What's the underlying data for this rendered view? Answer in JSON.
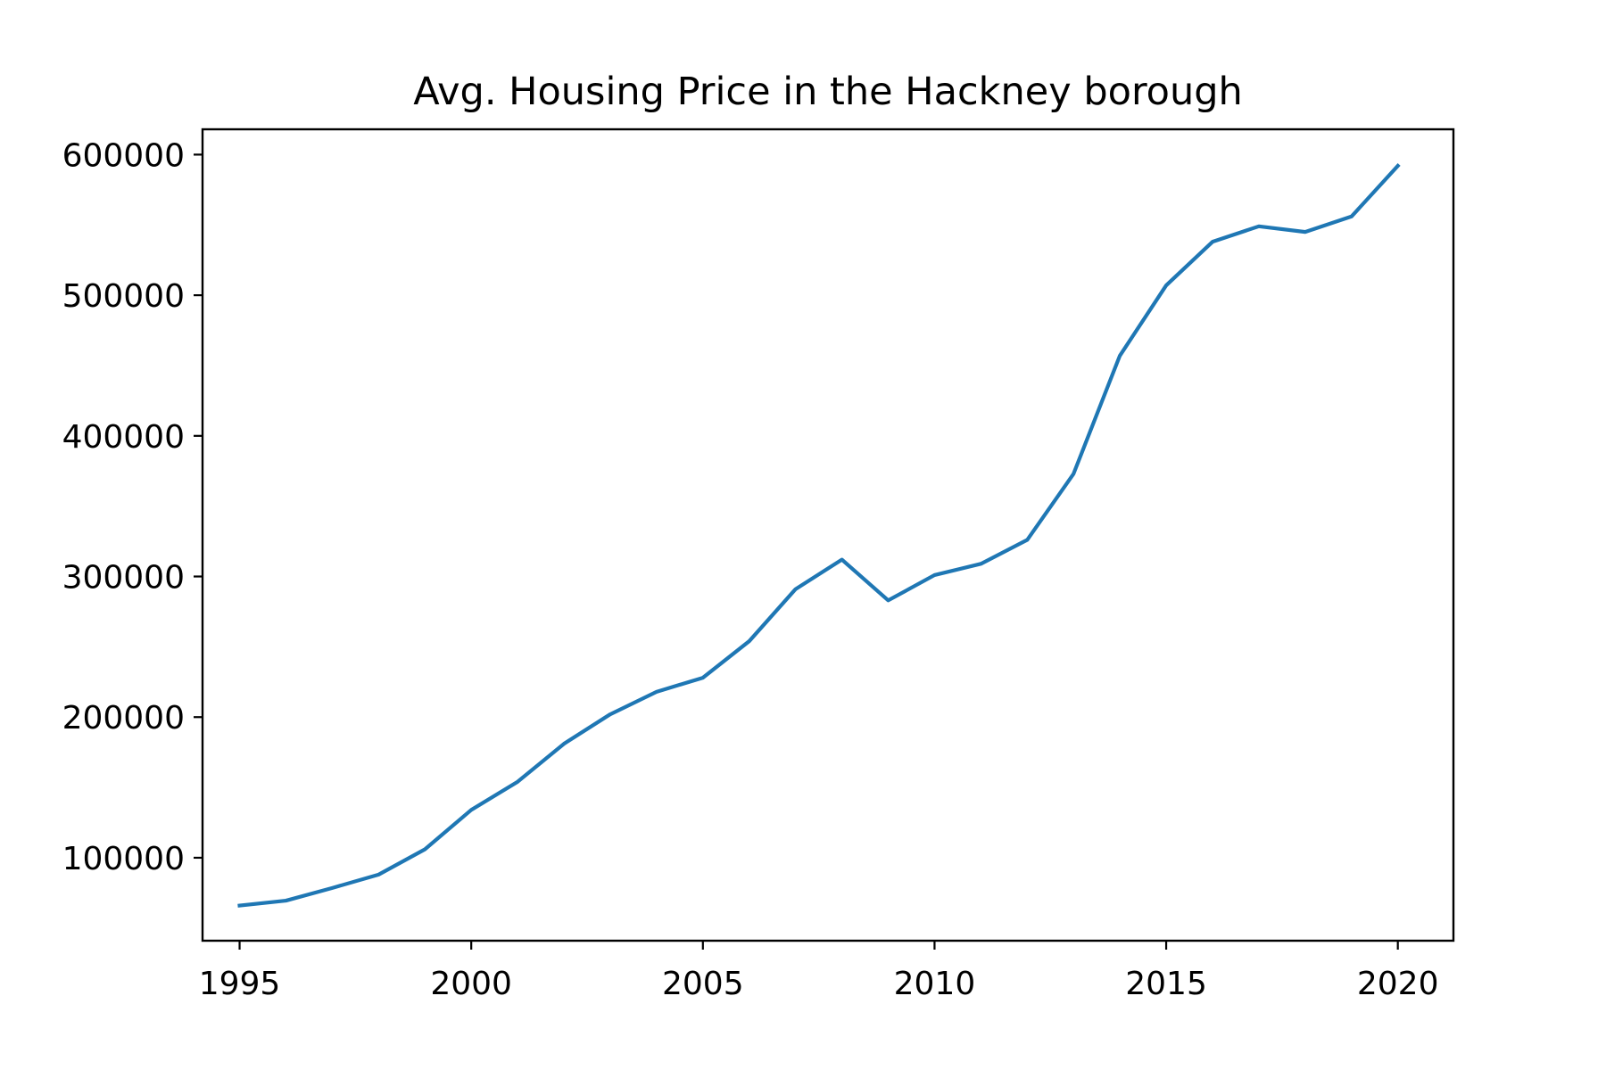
{
  "chart_data": {
    "type": "line",
    "title": "Avg. Housing Price in the Hackney borough",
    "xlabel": "",
    "ylabel": "",
    "xlim": [
      1994.2,
      2021.2
    ],
    "ylim": [
      41000,
      618000
    ],
    "x_ticks": [
      1995,
      2000,
      2005,
      2010,
      2015,
      2020
    ],
    "x_tick_labels": [
      "1995",
      "2000",
      "2005",
      "2010",
      "2015",
      "2020"
    ],
    "y_ticks": [
      100000,
      200000,
      300000,
      400000,
      500000,
      600000
    ],
    "y_tick_labels": [
      "100000",
      "200000",
      "300000",
      "400000",
      "500000",
      "600000"
    ],
    "grid": false,
    "legend": "none",
    "line_color": "#1f77b4",
    "x": [
      1995,
      1996,
      1997,
      1998,
      1999,
      2000,
      2001,
      2002,
      2003,
      2004,
      2005,
      2006,
      2007,
      2008,
      2009,
      2010,
      2011,
      2012,
      2013,
      2014,
      2015,
      2016,
      2017,
      2018,
      2019,
      2020
    ],
    "values": [
      66000,
      69500,
      78500,
      88000,
      106000,
      134000,
      154000,
      181000,
      202000,
      218000,
      228000,
      254000,
      291000,
      312000,
      283000,
      301000,
      309000,
      326000,
      373000,
      457000,
      507000,
      538000,
      549000,
      545000,
      556000,
      592000
    ]
  }
}
